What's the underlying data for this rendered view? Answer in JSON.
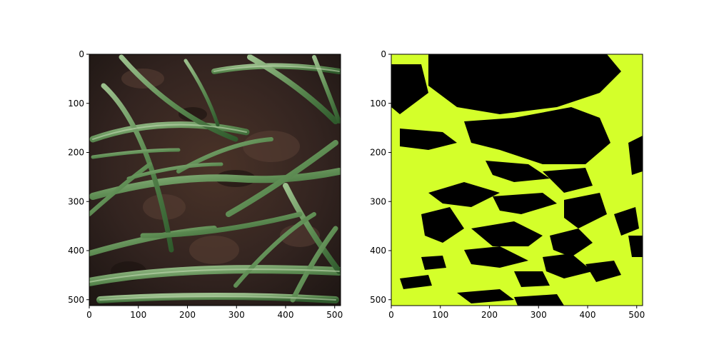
{
  "figure": {
    "panels": [
      {
        "name": "photo",
        "x_ticks": [
          "0",
          "100",
          "200",
          "300",
          "400",
          "500"
        ],
        "y_ticks": [
          "0",
          "100",
          "200",
          "300",
          "400",
          "500"
        ],
        "xlim": [
          0,
          512
        ],
        "ylim": [
          512,
          0
        ],
        "content": "rgb-field-photo-wheat-seedlings-on-soil"
      },
      {
        "name": "mask",
        "x_ticks": [
          "0",
          "100",
          "200",
          "300",
          "400",
          "500"
        ],
        "y_ticks": [
          "0",
          "100",
          "200",
          "300",
          "400",
          "500"
        ],
        "xlim": [
          0,
          512
        ],
        "ylim": [
          512,
          0
        ],
        "content": "binary-segmentation-mask",
        "colors": {
          "foreground": "#d4ff2a",
          "background": "#000000"
        }
      }
    ],
    "colors": {
      "soil_dark": "#2b1f1a",
      "soil_mid": "#3b2a22",
      "leaf_dark": "#3f6b3a",
      "leaf_mid": "#5f8d54",
      "leaf_light": "#9cc08d"
    }
  }
}
